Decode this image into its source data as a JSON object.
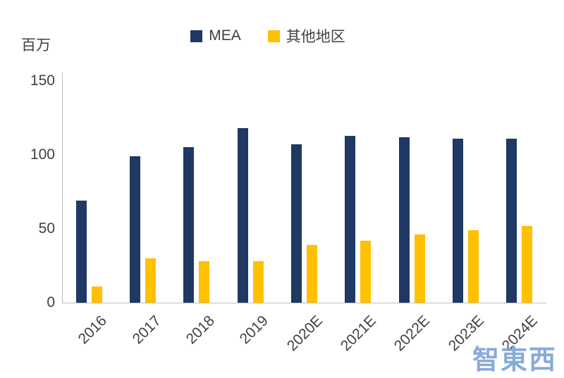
{
  "chart_data": {
    "type": "bar",
    "title": "",
    "unit_label": "百万",
    "categories": [
      "2016",
      "2017",
      "2018",
      "2019",
      "2020E",
      "2021E",
      "2022E",
      "2023E",
      "2024E"
    ],
    "series": [
      {
        "name": "MEA",
        "color": "#1F3864",
        "values": [
          69,
          99,
          105,
          118,
          107,
          113,
          112,
          111,
          111
        ]
      },
      {
        "name": "其他地区",
        "color": "#FFC000",
        "values": [
          11,
          30,
          28,
          28,
          39,
          42,
          46,
          49,
          52
        ]
      }
    ],
    "ylim": [
      0,
      150
    ],
    "yticks": [
      0,
      50,
      100,
      150
    ],
    "ylabel": "",
    "xlabel": "",
    "grid": false,
    "legend_position": "top"
  },
  "watermark": {
    "text": "智東西"
  }
}
